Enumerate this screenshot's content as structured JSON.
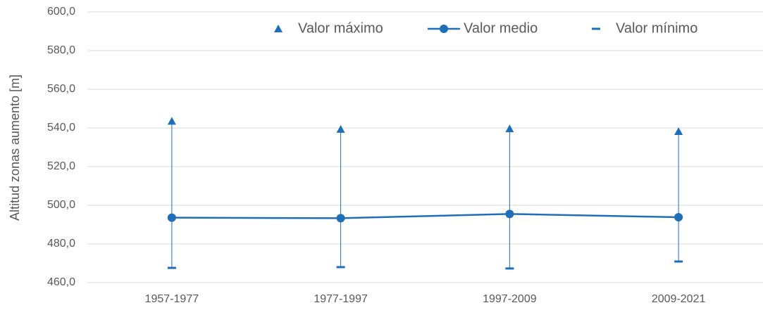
{
  "chart_data": {
    "type": "line",
    "y_label": "Altitud  zonas aumento [m]",
    "categories": [
      "1957-1977",
      "1977-1997",
      "1997-2009",
      "2009-2021"
    ],
    "series": [
      {
        "name": "Valor máximo",
        "color": "#1f6fb8",
        "marker": "triangle",
        "line": false,
        "values": [
          543.5,
          539.3,
          539.6,
          538.2
        ]
      },
      {
        "name": "Valor medio",
        "color": "#1f6fb8",
        "marker": "circle",
        "line": true,
        "values": [
          493.6,
          493.3,
          495.5,
          493.8
        ]
      },
      {
        "name": "Valor mínimo",
        "color": "#1f6fb8",
        "marker": "dash",
        "line": false,
        "values": [
          467.6,
          468.0,
          467.3,
          470.9
        ]
      }
    ],
    "hi_lo_lines": true,
    "ylim": [
      460,
      600
    ],
    "yticks": [
      {
        "value": 460,
        "label": "460,0"
      },
      {
        "value": 480,
        "label": "480,0"
      },
      {
        "value": 500,
        "label": "500,0"
      },
      {
        "value": 520,
        "label": "520,0"
      },
      {
        "value": 540,
        "label": "540,0"
      },
      {
        "value": 560,
        "label": "560,0"
      },
      {
        "value": 580,
        "label": "580,0"
      },
      {
        "value": 600,
        "label": "600,0"
      }
    ],
    "grid": true,
    "legend": "top"
  }
}
